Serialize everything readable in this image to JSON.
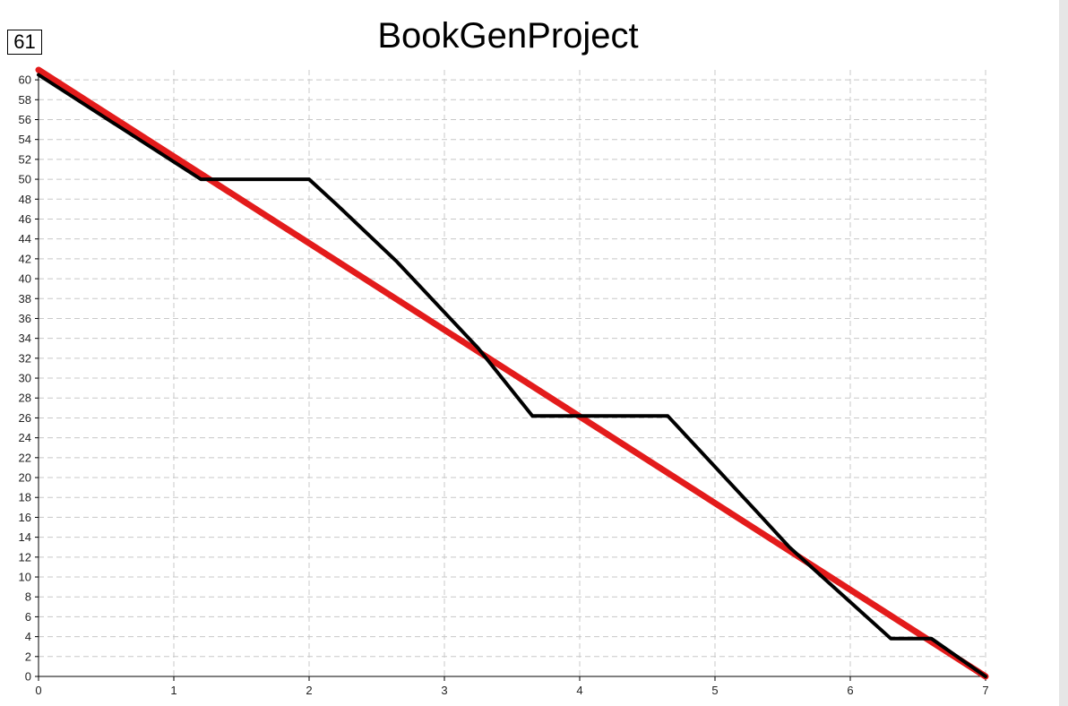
{
  "total_badge": "61",
  "colors": {
    "ideal_line": "#e31b1b",
    "actual_line": "#000000",
    "grid": "#c8c8c8",
    "axis": "#000000"
  },
  "chart_data": {
    "type": "line",
    "title": "BookGenProject",
    "xlabel": "",
    "ylabel": "",
    "xlim": [
      0,
      7
    ],
    "ylim": [
      0,
      61
    ],
    "x_ticks": [
      0,
      1,
      2,
      3,
      4,
      5,
      6,
      7
    ],
    "y_ticks": [
      0,
      2,
      4,
      6,
      8,
      10,
      12,
      14,
      16,
      18,
      20,
      22,
      24,
      26,
      28,
      30,
      32,
      34,
      36,
      38,
      40,
      42,
      44,
      46,
      48,
      50,
      52,
      54,
      56,
      58,
      60
    ],
    "grid": true,
    "series": [
      {
        "key": "ideal",
        "points": [
          [
            0,
            61
          ],
          [
            7,
            0
          ]
        ]
      },
      {
        "key": "actual",
        "points": [
          [
            0,
            60.5
          ],
          [
            1.2,
            50
          ],
          [
            2.0,
            50
          ],
          [
            2.2,
            47.5
          ],
          [
            2.65,
            41.7
          ],
          [
            3.25,
            33
          ],
          [
            3.65,
            26.2
          ],
          [
            4.15,
            26.2
          ],
          [
            4.65,
            26.2
          ],
          [
            5.3,
            16.7
          ],
          [
            5.55,
            13
          ],
          [
            6.3,
            3.8
          ],
          [
            6.6,
            3.8
          ],
          [
            7.0,
            0
          ]
        ]
      }
    ]
  }
}
